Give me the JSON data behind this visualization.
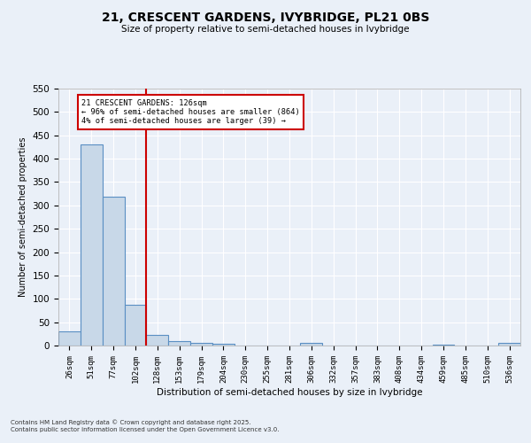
{
  "title": "21, CRESCENT GARDENS, IVYBRIDGE, PL21 0BS",
  "subtitle": "Size of property relative to semi-detached houses in Ivybridge",
  "xlabel": "Distribution of semi-detached houses by size in Ivybridge",
  "ylabel": "Number of semi-detached properties",
  "categories": [
    "26sqm",
    "51sqm",
    "77sqm",
    "102sqm",
    "128sqm",
    "153sqm",
    "179sqm",
    "204sqm",
    "230sqm",
    "255sqm",
    "281sqm",
    "306sqm",
    "332sqm",
    "357sqm",
    "383sqm",
    "408sqm",
    "434sqm",
    "459sqm",
    "485sqm",
    "510sqm",
    "536sqm"
  ],
  "values": [
    30,
    430,
    318,
    88,
    23,
    10,
    5,
    3,
    0,
    0,
    0,
    5,
    0,
    0,
    0,
    0,
    0,
    2,
    0,
    0,
    5
  ],
  "bar_color": "#c8d8e8",
  "bar_edge_color": "#5a8fc3",
  "vline_color": "#cc0000",
  "vline_index": 3.5,
  "annotation_title": "21 CRESCENT GARDENS: 126sqm",
  "annotation_line1": "← 96% of semi-detached houses are smaller (864)",
  "annotation_line2": "4% of semi-detached houses are larger (39) →",
  "annotation_box_color": "#cc0000",
  "ylim": [
    0,
    550
  ],
  "yticks": [
    0,
    50,
    100,
    150,
    200,
    250,
    300,
    350,
    400,
    450,
    500,
    550
  ],
  "background_color": "#eaf0f8",
  "grid_color": "#ffffff",
  "footer1": "Contains HM Land Registry data © Crown copyright and database right 2025.",
  "footer2": "Contains public sector information licensed under the Open Government Licence v3.0."
}
